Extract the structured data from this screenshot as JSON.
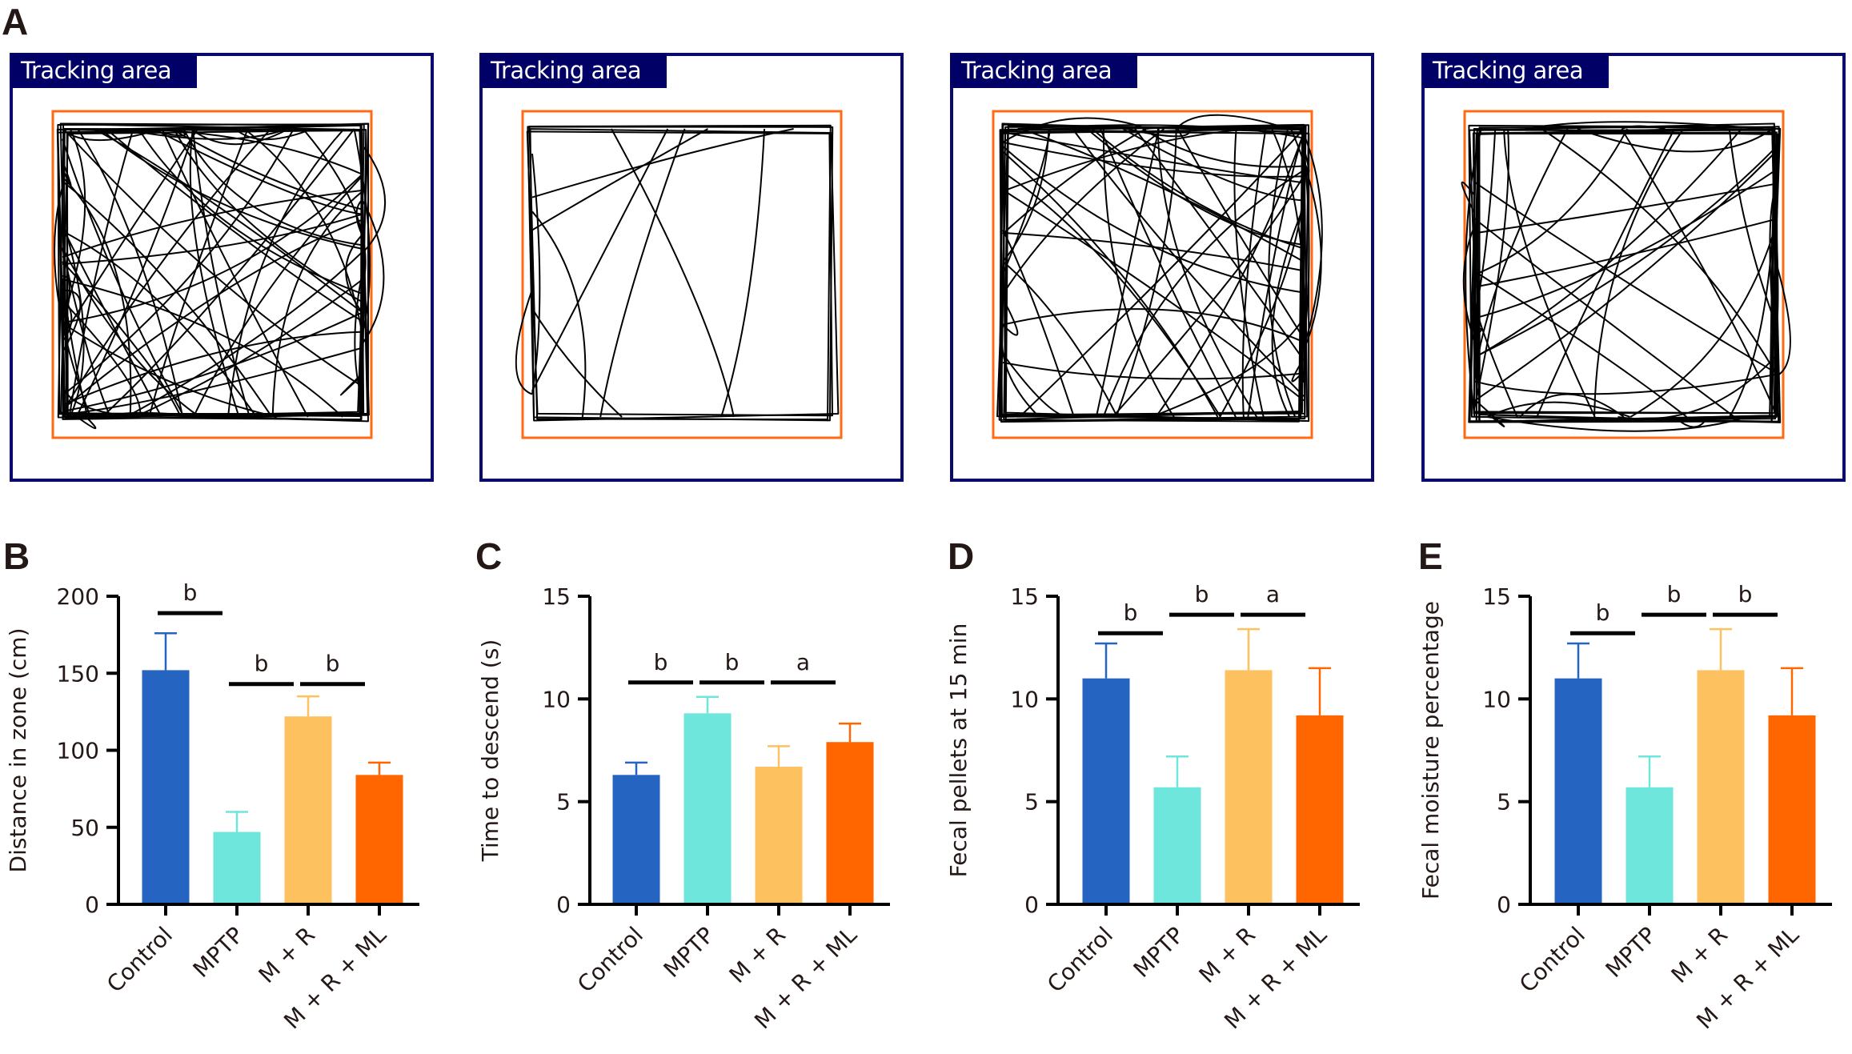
{
  "figure": {
    "panel_letters": [
      "A",
      "B",
      "C",
      "D",
      "E"
    ],
    "tracking": {
      "label": "Tracking area",
      "groups": [
        "Control",
        "MPTP",
        "M + R",
        "M + R + ML"
      ],
      "colors": {
        "outer_border": "#0a0a6e",
        "label_bg": "#000066",
        "zone_border": "#ff6a13",
        "trace": "#000000"
      }
    },
    "bar_colors": [
      "#2564c1",
      "#6fe6db",
      "#fdc25f",
      "#ff6600"
    ]
  },
  "chart_data": [
    {
      "panel": "B",
      "type": "bar",
      "title": "",
      "categories": [
        "Control",
        "MPTP",
        "M + R",
        "M + R + ML"
      ],
      "values": [
        152,
        47,
        122,
        84
      ],
      "error_upper": [
        176,
        60,
        135,
        92
      ],
      "xlabel": "",
      "ylabel": "Distance in zone (cm)",
      "ylim": [
        0,
        200
      ],
      "yticks": [
        0,
        50,
        100,
        150,
        200
      ],
      "grid": false,
      "significance": [
        {
          "from": 0,
          "to": 1,
          "label": "b",
          "level": 189
        },
        {
          "from": 1,
          "to": 2,
          "label": "b",
          "level": 143
        },
        {
          "from": 2,
          "to": 3,
          "label": "b",
          "level": 143
        }
      ]
    },
    {
      "panel": "C",
      "type": "bar",
      "title": "",
      "categories": [
        "Control",
        "MPTP",
        "M + R",
        "M + R + ML"
      ],
      "values": [
        6.3,
        9.3,
        6.7,
        7.9
      ],
      "error_upper": [
        6.9,
        10.1,
        7.7,
        8.8
      ],
      "xlabel": "",
      "ylabel": "Time to descend (s)",
      "ylim": [
        0,
        15
      ],
      "yticks": [
        0,
        5,
        10,
        15
      ],
      "grid": false,
      "significance": [
        {
          "from": 0,
          "to": 1,
          "label": "b",
          "level": 10.8
        },
        {
          "from": 1,
          "to": 2,
          "label": "b",
          "level": 10.8
        },
        {
          "from": 2,
          "to": 3,
          "label": "a",
          "level": 10.8
        }
      ]
    },
    {
      "panel": "D",
      "type": "bar",
      "title": "",
      "categories": [
        "Control",
        "MPTP",
        "M + R",
        "M + R + ML"
      ],
      "values": [
        11.0,
        5.7,
        11.4,
        9.2
      ],
      "error_upper": [
        12.7,
        7.2,
        13.4,
        11.5
      ],
      "xlabel": "",
      "ylabel": "Fecal pellets at 15 min",
      "ylim": [
        0,
        15
      ],
      "yticks": [
        0,
        5,
        10,
        15
      ],
      "grid": false,
      "significance": [
        {
          "from": 0,
          "to": 1,
          "label": "b",
          "level": 13.2
        },
        {
          "from": 1,
          "to": 2,
          "label": "b",
          "level": 14.1
        },
        {
          "from": 2,
          "to": 3,
          "label": "a",
          "level": 14.1
        }
      ]
    },
    {
      "panel": "E",
      "type": "bar",
      "title": "",
      "categories": [
        "Control",
        "MPTP",
        "M + R",
        "M + R + ML"
      ],
      "values": [
        11.0,
        5.7,
        11.4,
        9.2
      ],
      "error_upper": [
        12.7,
        7.2,
        13.4,
        11.5
      ],
      "xlabel": "",
      "ylabel": "Fecal moisture percentage",
      "ylim": [
        0,
        15
      ],
      "yticks": [
        0,
        5,
        10,
        15
      ],
      "grid": false,
      "significance": [
        {
          "from": 0,
          "to": 1,
          "label": "b",
          "level": 13.2
        },
        {
          "from": 1,
          "to": 2,
          "label": "b",
          "level": 14.1
        },
        {
          "from": 2,
          "to": 3,
          "label": "b",
          "level": 14.1
        }
      ]
    }
  ]
}
